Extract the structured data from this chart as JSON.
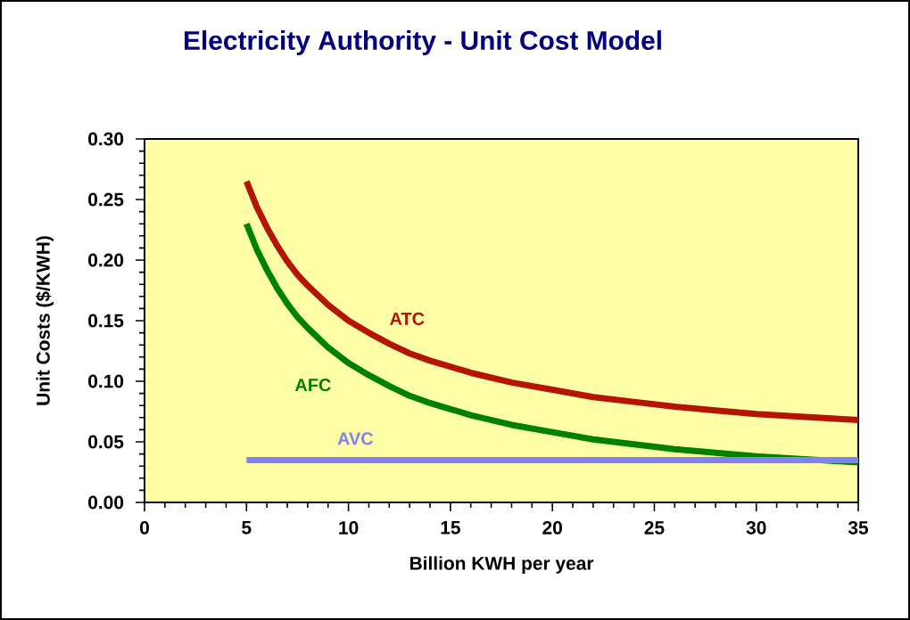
{
  "chart_data": {
    "type": "line",
    "title": "Electricity Authority - Unit Cost Model",
    "xlabel": "Billion KWH per year",
    "ylabel": "Unit Costs ($/KWH)",
    "xlim": [
      0,
      35
    ],
    "ylim": [
      0,
      0.3
    ],
    "xticks": [
      0,
      5,
      10,
      15,
      20,
      25,
      30,
      35
    ],
    "yticks": [
      {
        "value": 0,
        "label": "0.00"
      },
      {
        "value": 0.05,
        "label": "0.05"
      },
      {
        "value": 0.1,
        "label": "0.10"
      },
      {
        "value": 0.15,
        "label": "0.15"
      },
      {
        "value": 0.2,
        "label": "0.20"
      },
      {
        "value": 0.25,
        "label": "0.25"
      },
      {
        "value": 0.3,
        "label": "0.30"
      }
    ],
    "x": [
      5,
      5.5,
      6,
      6.5,
      7,
      7.5,
      8,
      9,
      10,
      11,
      12,
      13,
      14,
      16,
      18,
      20,
      22,
      24,
      26,
      28,
      30,
      32,
      35
    ],
    "series": [
      {
        "name": "ATC",
        "color": "#b41400",
        "values": [
          0.265,
          0.244,
          0.227,
          0.212,
          0.199,
          0.188,
          0.179,
          0.163,
          0.15,
          0.14,
          0.131,
          0.123,
          0.117,
          0.107,
          0.099,
          0.093,
          0.087,
          0.083,
          0.079,
          0.076,
          0.073,
          0.071,
          0.068
        ]
      },
      {
        "name": "AFC",
        "color": "#008000",
        "values": [
          0.23,
          0.209,
          0.192,
          0.177,
          0.164,
          0.153,
          0.144,
          0.128,
          0.115,
          0.105,
          0.096,
          0.088,
          0.082,
          0.072,
          0.064,
          0.058,
          0.052,
          0.048,
          0.044,
          0.041,
          0.038,
          0.036,
          0.033
        ]
      },
      {
        "name": "AVC",
        "color": "#8080f0",
        "x": [
          5,
          35
        ],
        "values": [
          0.035,
          0.035
        ]
      }
    ],
    "marker": "none",
    "line_style": "solid"
  }
}
